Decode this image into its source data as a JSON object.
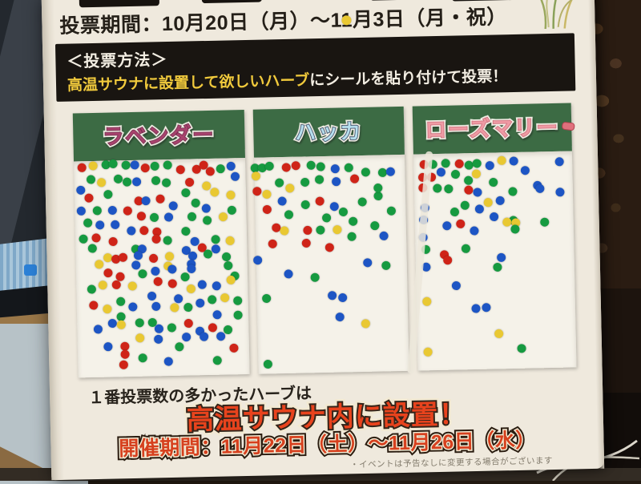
{
  "poster": {
    "vote_period": "投票期間：10月20日（月）〜11月3日（月・祝）",
    "method_title": "＜投票方法＞",
    "method_highlight": "高温サウナに設置して欲しいハーブ",
    "method_rest": "にシールを貼り付けて投票！",
    "result_line": "１番投票数の多かったハーブは",
    "result_highlight": "高温サウナ内に設置！",
    "event_period": "開催期間：11月22日（土）〜11月26日（水）",
    "disclaimer": "・イベントは予告なしに変更する場合がございます",
    "colors": {
      "header_green": "#3c6b44",
      "method_highlight_yellow": "#f0c93c",
      "result_red": "#e8431d",
      "event_red": "#d6401e",
      "poster_bg": "#efe9dd"
    }
  },
  "dot_colors": {
    "r": "#cf2418",
    "b": "#1d55c4",
    "g": "#169a40",
    "y": "#e9c832"
  },
  "boards": [
    {
      "name": "lavender",
      "label": "ラベンダー",
      "label_color": "#a8436e",
      "label_outline": "#6e2a48",
      "approx_votes": 142,
      "dots": [
        [
          4.9,
          3,
          "r"
        ],
        [
          11.2,
          2.3,
          "y"
        ],
        [
          18.5,
          1.9,
          "g"
        ],
        [
          22.9,
          1.5,
          "g"
        ],
        [
          30.2,
          2.3,
          "g"
        ],
        [
          35.6,
          2.3,
          "b"
        ],
        [
          41.5,
          3.8,
          "r"
        ],
        [
          47.3,
          3,
          "g"
        ],
        [
          54.6,
          2.7,
          "g"
        ],
        [
          62,
          4.9,
          "r"
        ],
        [
          71.7,
          4.9,
          "r"
        ],
        [
          75.6,
          3,
          "r"
        ],
        [
          79.5,
          6.1,
          "r"
        ],
        [
          85.4,
          4.9,
          "g"
        ],
        [
          91.7,
          3.8,
          "b"
        ],
        [
          9.8,
          8.7,
          "g"
        ],
        [
          16.1,
          9.9,
          "y"
        ],
        [
          25.9,
          8.7,
          "g"
        ],
        [
          30.7,
          9.9,
          "g"
        ],
        [
          36.6,
          9.9,
          "b"
        ],
        [
          47.8,
          9.5,
          "g"
        ],
        [
          53.7,
          10.6,
          "g"
        ],
        [
          67.3,
          10.6,
          "r"
        ],
        [
          77.1,
          12.5,
          "y"
        ],
        [
          94.1,
          8.7,
          "b"
        ],
        [
          3.9,
          13.3,
          "b"
        ],
        [
          19.5,
          15.6,
          "g"
        ],
        [
          64.9,
          15.6,
          "g"
        ],
        [
          82,
          15.6,
          "y"
        ],
        [
          91.2,
          17.1,
          "y"
        ],
        [
          8.3,
          17.1,
          "r"
        ],
        [
          37.6,
          19,
          "r"
        ],
        [
          41.5,
          19,
          "b"
        ],
        [
          50.2,
          18.3,
          "r"
        ],
        [
          57.6,
          21.3,
          "b"
        ],
        [
          70.7,
          20.2,
          "g"
        ],
        [
          3.9,
          22.8,
          "b"
        ],
        [
          13.2,
          22.8,
          "g"
        ],
        [
          22,
          22.8,
          "b"
        ],
        [
          30.7,
          23.2,
          "r"
        ],
        [
          76.6,
          22.8,
          "b"
        ],
        [
          91.7,
          24,
          "g"
        ],
        [
          39,
          25.9,
          "r"
        ],
        [
          46.3,
          26.6,
          "g"
        ],
        [
          54.6,
          26.6,
          "b"
        ],
        [
          68.3,
          26.6,
          "g"
        ],
        [
          86.3,
          27,
          "y"
        ],
        [
          7.3,
          28.5,
          "g"
        ],
        [
          14.6,
          29.7,
          "b"
        ],
        [
          23.4,
          29.7,
          "b"
        ],
        [
          77.1,
          28.5,
          "g"
        ],
        [
          32.7,
          32.7,
          "b"
        ],
        [
          40,
          32.7,
          "r"
        ],
        [
          47.8,
          33.5,
          "r"
        ],
        [
          64.4,
          33.5,
          "g"
        ],
        [
          4.9,
          36.1,
          "g"
        ],
        [
          12.2,
          35.4,
          "r"
        ],
        [
          22,
          37.3,
          "r"
        ],
        [
          47.3,
          36.5,
          "r"
        ],
        [
          53.7,
          37.3,
          "g"
        ],
        [
          69.8,
          38,
          "b"
        ],
        [
          82,
          37.3,
          "g"
        ],
        [
          90.2,
          38,
          "y"
        ],
        [
          9.8,
          40.3,
          "g"
        ],
        [
          35.1,
          41.1,
          "g"
        ],
        [
          39,
          41.1,
          "b"
        ],
        [
          64.4,
          42.2,
          "b"
        ],
        [
          74.1,
          41.1,
          "r"
        ],
        [
          82,
          41.8,
          "b"
        ],
        [
          18.5,
          44.9,
          "y"
        ],
        [
          23.4,
          45.6,
          "r"
        ],
        [
          27.8,
          44.9,
          "r"
        ],
        [
          36.6,
          44.1,
          "b"
        ],
        [
          45.4,
          45.6,
          "r"
        ],
        [
          54.6,
          44.9,
          "y"
        ],
        [
          68.3,
          44.9,
          "b"
        ],
        [
          77.1,
          44.1,
          "g"
        ],
        [
          87.8,
          45.6,
          "g"
        ],
        [
          13.7,
          47.9,
          "y"
        ],
        [
          35.1,
          48.7,
          "b"
        ],
        [
          53.7,
          49.4,
          "y"
        ],
        [
          67.3,
          48.7,
          "b"
        ],
        [
          18.5,
          51.7,
          "r"
        ],
        [
          25.9,
          53.6,
          "r"
        ],
        [
          39,
          52.5,
          "g"
        ],
        [
          46.3,
          51.3,
          "b"
        ],
        [
          56.1,
          50.6,
          "b"
        ],
        [
          67.3,
          50.6,
          "b"
        ],
        [
          63.4,
          54.4,
          "g"
        ],
        [
          88.8,
          49.8,
          "g"
        ],
        [
          92.7,
          54.4,
          "g"
        ],
        [
          15.6,
          57.4,
          "y"
        ],
        [
          23.4,
          57.4,
          "r"
        ],
        [
          47.8,
          56.3,
          "r"
        ],
        [
          56.1,
          57.4,
          "r"
        ],
        [
          66.8,
          60.1,
          "y"
        ],
        [
          73.2,
          58.2,
          "b"
        ],
        [
          82,
          58.9,
          "b"
        ],
        [
          90.2,
          56.3,
          "y"
        ],
        [
          8.8,
          59.3,
          "g"
        ],
        [
          32.7,
          58.2,
          "y"
        ],
        [
          43.9,
          63.1,
          "b"
        ],
        [
          59.5,
          64.6,
          "b"
        ],
        [
          72.2,
          66.5,
          "b"
        ],
        [
          79,
          65,
          "g"
        ],
        [
          86.3,
          64.6,
          "y"
        ],
        [
          94.1,
          65.8,
          "g"
        ],
        [
          9.8,
          66.5,
          "r"
        ],
        [
          18,
          68.4,
          "y"
        ],
        [
          25.9,
          65,
          "g"
        ],
        [
          32.7,
          67.7,
          "b"
        ],
        [
          46.3,
          67.7,
          "b"
        ],
        [
          57.1,
          68.4,
          "y"
        ],
        [
          64.9,
          68.4,
          "g"
        ],
        [
          82,
          72.2,
          "b"
        ],
        [
          94.1,
          72.6,
          "g"
        ],
        [
          25.9,
          72.2,
          "g"
        ],
        [
          20.5,
          75.3,
          "b"
        ],
        [
          25.9,
          76,
          "y"
        ],
        [
          36.6,
          75.3,
          "g"
        ],
        [
          43.9,
          75.3,
          "g"
        ],
        [
          47.8,
          78.3,
          "b"
        ],
        [
          55.1,
          77.9,
          "g"
        ],
        [
          64.9,
          76,
          "r"
        ],
        [
          71.7,
          79.8,
          "b"
        ],
        [
          79,
          78.3,
          "r"
        ],
        [
          87.8,
          79.1,
          "g"
        ],
        [
          12.2,
          77.9,
          "b"
        ],
        [
          36.6,
          82.1,
          "y"
        ],
        [
          47.3,
          82.9,
          "b"
        ],
        [
          63.4,
          82.1,
          "b"
        ],
        [
          74.1,
          82.1,
          "b"
        ],
        [
          83.9,
          82.1,
          "b"
        ],
        [
          18,
          85.9,
          "b"
        ],
        [
          27.8,
          85.9,
          "r"
        ],
        [
          59.5,
          86.7,
          "g"
        ],
        [
          91.2,
          87.8,
          "r"
        ],
        [
          27.8,
          89.7,
          "r"
        ],
        [
          38,
          91.6,
          "g"
        ],
        [
          52.7,
          93.5,
          "b"
        ],
        [
          81.5,
          93.2,
          "g"
        ],
        [
          26.8,
          94.3,
          "r"
        ]
      ]
    },
    {
      "name": "hakka",
      "label": "ハッカ",
      "label_color": "#b8e0ef",
      "label_outline": "#2b3a55",
      "approx_votes": 56,
      "dots": [
        [
          0.6,
          4.9,
          "g"
        ],
        [
          5.6,
          4.9,
          "g"
        ],
        [
          10,
          4.2,
          "g"
        ],
        [
          21.1,
          4.9,
          "r"
        ],
        [
          27.8,
          4.2,
          "r"
        ],
        [
          37.8,
          4.2,
          "g"
        ],
        [
          44.4,
          4.9,
          "g"
        ],
        [
          53.9,
          6.1,
          "b"
        ],
        [
          62.8,
          5.7,
          "g"
        ],
        [
          73.9,
          7.6,
          "g"
        ],
        [
          85,
          8,
          "g"
        ],
        [
          90.6,
          7.6,
          "b"
        ],
        [
          1.1,
          8.7,
          "y"
        ],
        [
          16.7,
          11.8,
          "g"
        ],
        [
          23.3,
          14.4,
          "y"
        ],
        [
          33.3,
          11.8,
          "g"
        ],
        [
          43.3,
          10.6,
          "g"
        ],
        [
          54.4,
          11.8,
          "b"
        ],
        [
          66.7,
          10.6,
          "r"
        ],
        [
          1.7,
          15.6,
          "r"
        ],
        [
          8.3,
          17.1,
          "y"
        ],
        [
          18.3,
          20.2,
          "b"
        ],
        [
          33.3,
          22.1,
          "g"
        ],
        [
          43.3,
          20.9,
          "r"
        ],
        [
          52.8,
          23.2,
          "b"
        ],
        [
          71.1,
          21.3,
          "g"
        ],
        [
          81.7,
          19,
          "g"
        ],
        [
          81.7,
          15.2,
          "g"
        ],
        [
          8.3,
          24,
          "r"
        ],
        [
          22.2,
          26.6,
          "g"
        ],
        [
          47.2,
          28.5,
          "g"
        ],
        [
          58.3,
          25.9,
          "g"
        ],
        [
          65,
          30.4,
          "g"
        ],
        [
          90.6,
          25.9,
          "g"
        ],
        [
          13.9,
          32.7,
          "r"
        ],
        [
          19.4,
          34.2,
          "y"
        ],
        [
          34.4,
          34.2,
          "r"
        ],
        [
          43.3,
          34.2,
          "g"
        ],
        [
          54.4,
          34.2,
          "y"
        ],
        [
          63.9,
          37.3,
          "g"
        ],
        [
          79.4,
          32.7,
          "g"
        ],
        [
          85,
          37.3,
          "b"
        ],
        [
          11.1,
          39.9,
          "r"
        ],
        [
          33.3,
          39.9,
          "r"
        ],
        [
          48.9,
          42.2,
          "r"
        ],
        [
          1.1,
          47.5,
          "b"
        ],
        [
          73.9,
          49.8,
          "b"
        ],
        [
          86.1,
          51,
          "g"
        ],
        [
          21.1,
          54,
          "b"
        ],
        [
          38.9,
          55.9,
          "g"
        ],
        [
          6.7,
          65,
          "g"
        ],
        [
          50,
          64.3,
          "b"
        ],
        [
          57.2,
          65.4,
          "b"
        ],
        [
          55,
          74.5,
          "b"
        ],
        [
          71.7,
          77.6,
          "y"
        ],
        [
          6.7,
          95.4,
          "g"
        ]
      ]
    },
    {
      "name": "rosemary",
      "label": "ローズマリー",
      "label_color": "#ef9aa4",
      "label_outline": "#c96a77",
      "approx_votes": 58,
      "dots": [
        [
          6.8,
          4.9,
          "r"
        ],
        [
          12.1,
          4.9,
          "g"
        ],
        [
          20,
          4.6,
          "g"
        ],
        [
          28.9,
          4.9,
          "r"
        ],
        [
          34.7,
          5.7,
          "g"
        ],
        [
          40,
          4.9,
          "g"
        ],
        [
          47.9,
          6.1,
          "b"
        ],
        [
          55.8,
          3.8,
          "y"
        ],
        [
          63.2,
          4.2,
          "b"
        ],
        [
          70,
          8.7,
          "b"
        ],
        [
          92.1,
          4.9,
          "b"
        ],
        [
          5.8,
          10.6,
          "r"
        ],
        [
          11.1,
          10.6,
          "r"
        ],
        [
          17.4,
          8.7,
          "b"
        ],
        [
          26.3,
          9.5,
          "g"
        ],
        [
          34.2,
          12.5,
          "g"
        ],
        [
          39.5,
          9.5,
          "y"
        ],
        [
          50,
          13.7,
          "g"
        ],
        [
          5.8,
          15.6,
          "r"
        ],
        [
          14.7,
          16,
          "g"
        ],
        [
          21.6,
          16.3,
          "g"
        ],
        [
          34.2,
          17.1,
          "r"
        ],
        [
          40,
          18.3,
          "b"
        ],
        [
          62.1,
          18.3,
          "g"
        ],
        [
          77.9,
          15.6,
          "b"
        ],
        [
          79.5,
          17.1,
          "b"
        ],
        [
          92.1,
          19,
          "b"
        ],
        [
          46.3,
          22.8,
          "y"
        ],
        [
          54.2,
          22.1,
          "b"
        ],
        [
          6.8,
          24.7,
          "b"
        ],
        [
          31.6,
          24,
          "g"
        ],
        [
          41.1,
          25.9,
          "b"
        ],
        [
          25.3,
          27,
          "g"
        ],
        [
          5.8,
          30.4,
          "b"
        ],
        [
          50,
          29.7,
          "b"
        ],
        [
          62.1,
          31.6,
          "g"
        ],
        [
          20,
          33.5,
          "b"
        ],
        [
          28.9,
          32.7,
          "r"
        ],
        [
          37.4,
          36.1,
          "b"
        ],
        [
          57.9,
          32.3,
          "y"
        ],
        [
          63.7,
          32.7,
          "y"
        ],
        [
          63.2,
          35.4,
          "g"
        ],
        [
          81.6,
          32.7,
          "g"
        ],
        [
          5.3,
          38.4,
          "b"
        ],
        [
          6.8,
          44.1,
          "g"
        ],
        [
          18.4,
          46.8,
          "r"
        ],
        [
          31.6,
          44.1,
          "g"
        ],
        [
          54.2,
          48.7,
          "b"
        ],
        [
          6.8,
          52.1,
          "b"
        ],
        [
          51.6,
          52.9,
          "g"
        ],
        [
          20,
          49.4,
          "r"
        ],
        [
          25.3,
          61.2,
          "b"
        ],
        [
          6.8,
          68.1,
          "y"
        ],
        [
          37.4,
          71.9,
          "b"
        ],
        [
          43.7,
          71.5,
          "b"
        ],
        [
          51.6,
          83.7,
          "y"
        ],
        [
          6.8,
          91.6,
          "y"
        ],
        [
          65.8,
          90.9,
          "g"
        ]
      ]
    }
  ]
}
